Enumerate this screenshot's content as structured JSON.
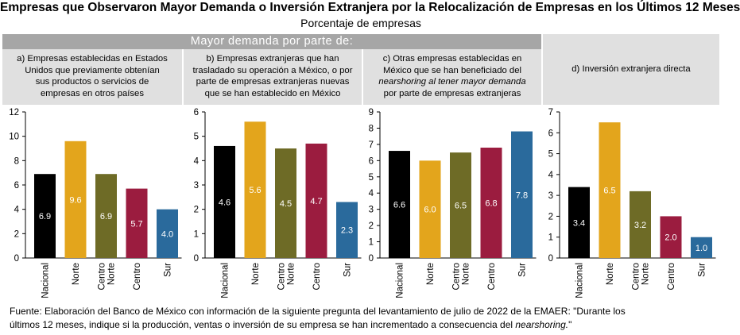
{
  "title": "Empresas que Observaron Mayor Demanda o Inversión Extranjera por la Relocalización de Empresas en los Últimos 12 Meses",
  "subtitle": "Porcentaje de empresas",
  "band": "Mayor demanda por parte de:",
  "source": {
    "line1": "Fuente: Elaboración del Banco de México con información de la siguiente pregunta del levantamiento de julio de 2022 de la EMAER: \"Durante los",
    "line2_pre": "últimos 12 meses, indique si la producción, ventas o inversión de su empresa se han incrementado a consecuencia del ",
    "line2_em": "nearshoring.",
    "line2_post": "\""
  },
  "colors": {
    "Nacional": "#000000",
    "Norte": "#e3a51c",
    "Centro Norte": "#6e6b26",
    "Centro": "#9b1c3f",
    "Sur": "#2a6a9c",
    "header_bg": "#e0e0e0",
    "band_bg": "#a6a6a6"
  },
  "chart_data": [
    {
      "type": "bar",
      "heading_lines": [
        "a) Empresas establecidas en Estados",
        "Unidos que previamente obtenían",
        "sus productos o servicios de",
        "empresas en otros países"
      ],
      "categories": [
        "Nacional",
        "Norte",
        "Centro Norte",
        "Centro",
        "Sur"
      ],
      "values": [
        6.9,
        9.6,
        6.9,
        5.7,
        4.0
      ],
      "labels": [
        "6.9",
        "9.6",
        "6.9",
        "5.7",
        "4.0"
      ],
      "ylim": [
        0,
        12
      ],
      "yticks": [
        "0",
        "2",
        "4",
        "6",
        "8",
        "10",
        "12"
      ]
    },
    {
      "type": "bar",
      "heading_lines": [
        "b) Empresas extranjeras que han",
        "trasladado su operación a México, o por",
        "parte de empresas extranjeras nuevas",
        "que se han establecido en México"
      ],
      "categories": [
        "Nacional",
        "Norte",
        "Centro Norte",
        "Centro",
        "Sur"
      ],
      "values": [
        4.6,
        5.6,
        4.5,
        4.7,
        2.3
      ],
      "labels": [
        "4.6",
        "5.6",
        "4.5",
        "4.7",
        "2.3"
      ],
      "ylim": [
        0,
        6
      ],
      "yticks": [
        "0",
        "1",
        "2",
        "3",
        "4",
        "5",
        "6"
      ]
    },
    {
      "type": "bar",
      "heading_lines": [
        "c) Otras empresas establecidas en",
        "México que se han beneficiado del",
        "nearshoring al tener mayor demanda",
        "por parte de empresas extranjeras"
      ],
      "categories": [
        "Nacional",
        "Norte",
        "Centro Norte",
        "Centro",
        "Sur"
      ],
      "values": [
        6.6,
        6.0,
        6.5,
        6.8,
        7.8
      ],
      "labels": [
        "6.6",
        "6.0",
        "6.5",
        "6.8",
        "7.8"
      ],
      "ylim": [
        0,
        9
      ],
      "yticks": [
        "0",
        "1",
        "2",
        "3",
        "4",
        "5",
        "6",
        "7",
        "8",
        "9"
      ]
    },
    {
      "type": "bar",
      "heading_lines": [
        "d) Inversión extranjera directa"
      ],
      "categories": [
        "Nacional",
        "Norte",
        "Centro Norte",
        "Centro",
        "Sur"
      ],
      "values": [
        3.4,
        6.5,
        3.2,
        2.0,
        1.0
      ],
      "labels": [
        "3.4",
        "6.5",
        "3.2",
        "2.0",
        "1.0"
      ],
      "ylim": [
        0,
        7
      ],
      "yticks": [
        "0",
        "1",
        "2",
        "3",
        "4",
        "5",
        "6",
        "7"
      ]
    }
  ]
}
